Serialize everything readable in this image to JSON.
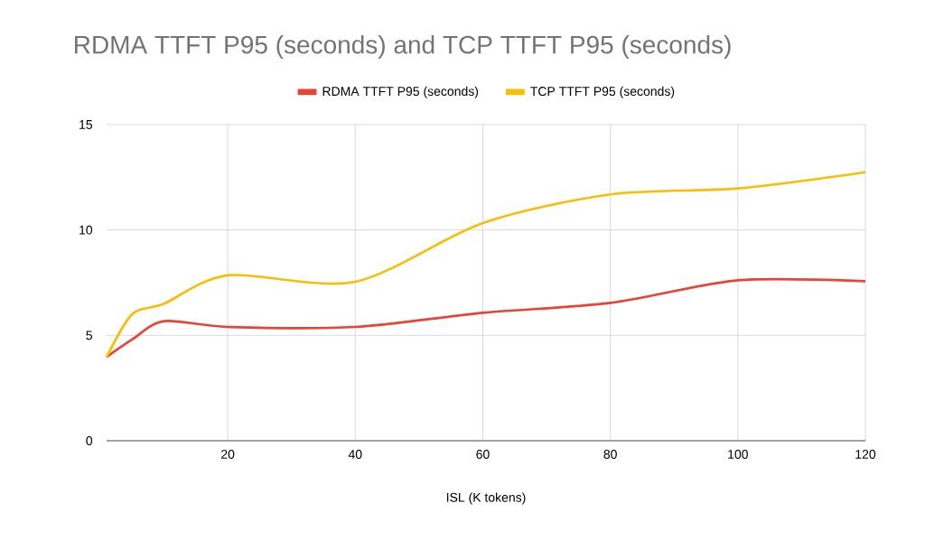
{
  "chart_data": {
    "type": "line",
    "title": "RDMA TTFT P95 (seconds) and TCP TTFT P95 (seconds)",
    "xlabel": "ISL (K tokens)",
    "x": [
      1,
      5,
      10,
      20,
      40,
      60,
      80,
      100,
      120
    ],
    "series": [
      {
        "name": "RDMA TTFT P95 (seconds)",
        "color": "#ea4335",
        "values": [
          3.97,
          4.8,
          5.67,
          5.4,
          5.4,
          6.07,
          6.54,
          7.61,
          7.57
        ]
      },
      {
        "name": "TCP TTFT P95 (seconds)",
        "color": "#fbbc04",
        "values": [
          3.97,
          6.0,
          6.5,
          7.85,
          7.54,
          10.33,
          11.69,
          11.97,
          12.74
        ]
      }
    ],
    "xlim": [
      1,
      120
    ],
    "xticks": [
      20,
      40,
      60,
      80,
      100,
      120
    ],
    "ylim": [
      0,
      15
    ],
    "yticks": [
      0,
      5,
      10,
      15
    ],
    "grid": true,
    "legend": "top",
    "marker": "none",
    "line_style": "solid"
  }
}
